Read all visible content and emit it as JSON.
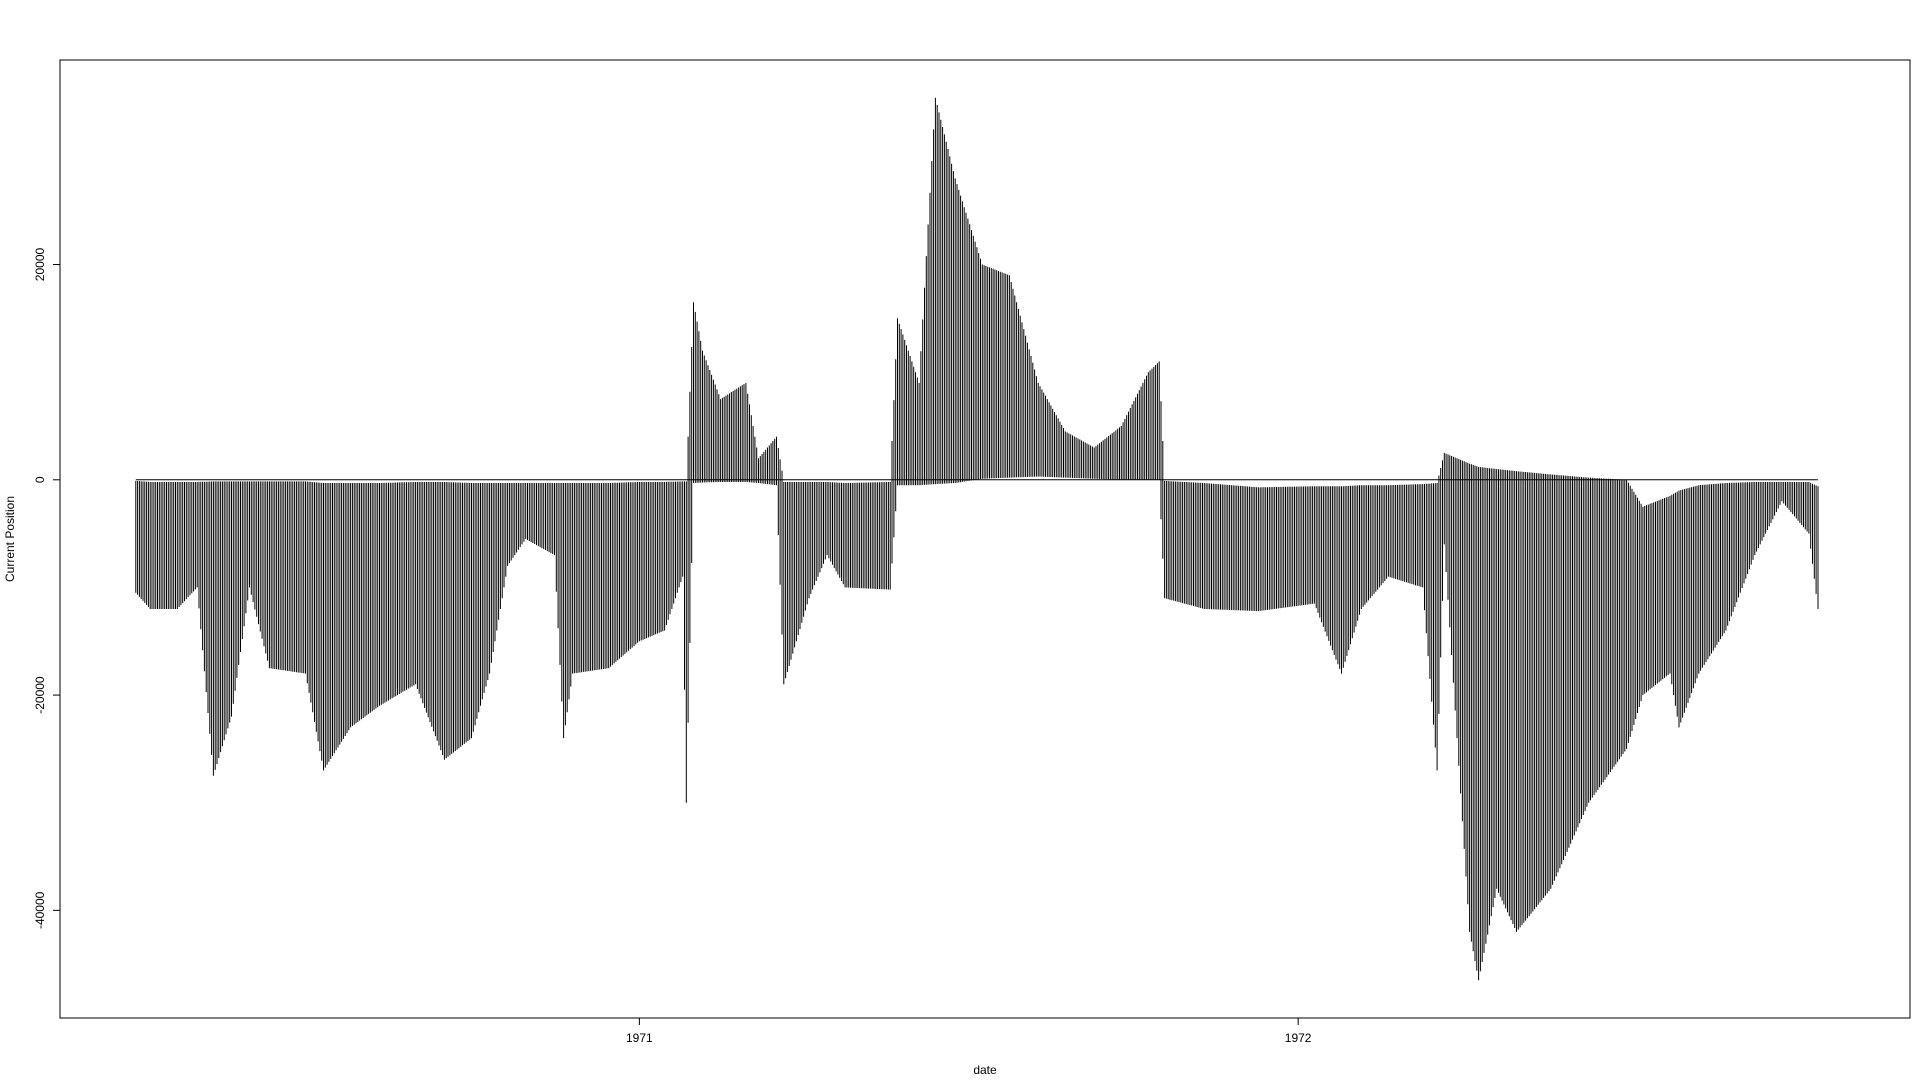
{
  "chart_data": {
    "type": "bar",
    "title": "",
    "xlabel": "date",
    "ylabel": "Current Position",
    "ylim": [
      -50000,
      39000
    ],
    "yticks": [
      -40000,
      -20000,
      0,
      20000
    ],
    "ytick_labels": [
      "-40000",
      "-20000",
      "0",
      "20000"
    ],
    "xlim": [
      "1970-02-14",
      "1972-12-05"
    ],
    "xticks": [
      "1971-01-01",
      "1972-01-01"
    ],
    "xtick_labels": [
      "1971",
      "1972"
    ],
    "x_range": [
      "1970-03-28",
      "1972-10-15"
    ],
    "grid": false,
    "legend": "none",
    "bar_color": "#000000",
    "profile": [
      {
        "x": "1970-03-28",
        "low": -10500,
        "high": -100
      },
      {
        "x": "1970-04-05",
        "low": -12000,
        "high": -200
      },
      {
        "x": "1970-04-20",
        "low": -12000,
        "high": -200
      },
      {
        "x": "1970-05-01",
        "low": -10000,
        "high": -200
      },
      {
        "x": "1970-05-10",
        "low": -27500,
        "high": -150
      },
      {
        "x": "1970-05-20",
        "low": -22000,
        "high": -150
      },
      {
        "x": "1970-05-30",
        "low": -10000,
        "high": -150
      },
      {
        "x": "1970-06-10",
        "low": -17500,
        "high": -150
      },
      {
        "x": "1970-06-30",
        "low": -18000,
        "high": -150
      },
      {
        "x": "1970-07-10",
        "low": -27000,
        "high": -300
      },
      {
        "x": "1970-07-25",
        "low": -23000,
        "high": -300
      },
      {
        "x": "1970-08-10",
        "low": -21000,
        "high": -300
      },
      {
        "x": "1970-08-30",
        "low": -19000,
        "high": -200
      },
      {
        "x": "1970-09-15",
        "low": -26000,
        "high": -200
      },
      {
        "x": "1970-09-30",
        "low": -24000,
        "high": -300
      },
      {
        "x": "1970-10-10",
        "low": -18000,
        "high": -300
      },
      {
        "x": "1970-10-20",
        "low": -8000,
        "high": -300
      },
      {
        "x": "1970-10-30",
        "low": -5500,
        "high": -300
      },
      {
        "x": "1970-11-15",
        "low": -7000,
        "high": -300
      },
      {
        "x": "1970-11-20",
        "low": -24000,
        "high": -300
      },
      {
        "x": "1970-11-25",
        "low": -18000,
        "high": -300
      },
      {
        "x": "1970-12-15",
        "low": -17500,
        "high": -300
      },
      {
        "x": "1971-01-01",
        "low": -15000,
        "high": -200
      },
      {
        "x": "1971-01-15",
        "low": -14000,
        "high": -200
      },
      {
        "x": "1971-01-25",
        "low": -9000,
        "high": -150
      },
      {
        "x": "1971-01-27",
        "low": -30000,
        "high": -150
      },
      {
        "x": "1971-01-31",
        "low": -300,
        "high": 16500
      },
      {
        "x": "1971-02-05",
        "low": -250,
        "high": 12000
      },
      {
        "x": "1971-02-15",
        "low": -200,
        "high": 7500
      },
      {
        "x": "1971-03-01",
        "low": -200,
        "high": 9000
      },
      {
        "x": "1971-03-08",
        "low": -300,
        "high": 2000
      },
      {
        "x": "1971-03-18",
        "low": -500,
        "high": 4000
      },
      {
        "x": "1971-03-22",
        "low": -19000,
        "high": -200
      },
      {
        "x": "1971-04-05",
        "low": -11000,
        "high": -200
      },
      {
        "x": "1971-04-15",
        "low": -7000,
        "high": -200
      },
      {
        "x": "1971-04-25",
        "low": -10000,
        "high": -300
      },
      {
        "x": "1971-05-20",
        "low": -10200,
        "high": -200
      },
      {
        "x": "1971-05-24",
        "low": -500,
        "high": 15000
      },
      {
        "x": "1971-06-05",
        "low": -500,
        "high": 9000
      },
      {
        "x": "1971-06-14",
        "low": -400,
        "high": 35500
      },
      {
        "x": "1971-06-25",
        "low": -300,
        "high": 28000
      },
      {
        "x": "1971-07-10",
        "low": 100,
        "high": 20000
      },
      {
        "x": "1971-07-25",
        "low": 200,
        "high": 19000
      },
      {
        "x": "1971-08-10",
        "low": 300,
        "high": 9000
      },
      {
        "x": "1971-08-25",
        "low": 200,
        "high": 4500
      },
      {
        "x": "1971-09-10",
        "low": 100,
        "high": 3000
      },
      {
        "x": "1971-09-25",
        "low": 0,
        "high": 5000
      },
      {
        "x": "1971-10-10",
        "low": 0,
        "high": 10000
      },
      {
        "x": "1971-10-16",
        "low": 0,
        "high": 11000
      },
      {
        "x": "1971-10-19",
        "low": -11000,
        "high": -100
      },
      {
        "x": "1971-11-10",
        "low": -12000,
        "high": -300
      },
      {
        "x": "1971-12-10",
        "low": -12200,
        "high": -700
      },
      {
        "x": "1972-01-10",
        "low": -11500,
        "high": -600
      },
      {
        "x": "1972-01-25",
        "low": -18000,
        "high": -600
      },
      {
        "x": "1972-02-05",
        "low": -12000,
        "high": -500
      },
      {
        "x": "1972-02-20",
        "low": -9000,
        "high": -500
      },
      {
        "x": "1972-03-10",
        "low": -10000,
        "high": -400
      },
      {
        "x": "1972-03-18",
        "low": -27000,
        "high": -300
      },
      {
        "x": "1972-03-22",
        "low": -6000,
        "high": 2500
      },
      {
        "x": "1972-04-05",
        "low": -42000,
        "high": 1500
      },
      {
        "x": "1972-04-10",
        "low": -46500,
        "high": 1200
      },
      {
        "x": "1972-04-20",
        "low": -38000,
        "high": 1000
      },
      {
        "x": "1972-05-01",
        "low": -42000,
        "high": 800
      },
      {
        "x": "1972-05-20",
        "low": -38000,
        "high": 500
      },
      {
        "x": "1972-06-10",
        "low": -30000,
        "high": 200
      },
      {
        "x": "1972-07-01",
        "low": -25000,
        "high": 0
      },
      {
        "x": "1972-07-10",
        "low": -20000,
        "high": -2500
      },
      {
        "x": "1972-07-25",
        "low": -18000,
        "high": -1500
      },
      {
        "x": "1972-07-30",
        "low": -23000,
        "high": -1000
      },
      {
        "x": "1972-08-10",
        "low": -18000,
        "high": -500
      },
      {
        "x": "1972-08-25",
        "low": -14000,
        "high": -300
      },
      {
        "x": "1972-09-10",
        "low": -7000,
        "high": -200
      },
      {
        "x": "1972-09-25",
        "low": -2000,
        "high": -200
      },
      {
        "x": "1972-10-10",
        "low": -5000,
        "high": -200
      },
      {
        "x": "1972-10-15",
        "low": -12000,
        "high": -600
      }
    ]
  }
}
